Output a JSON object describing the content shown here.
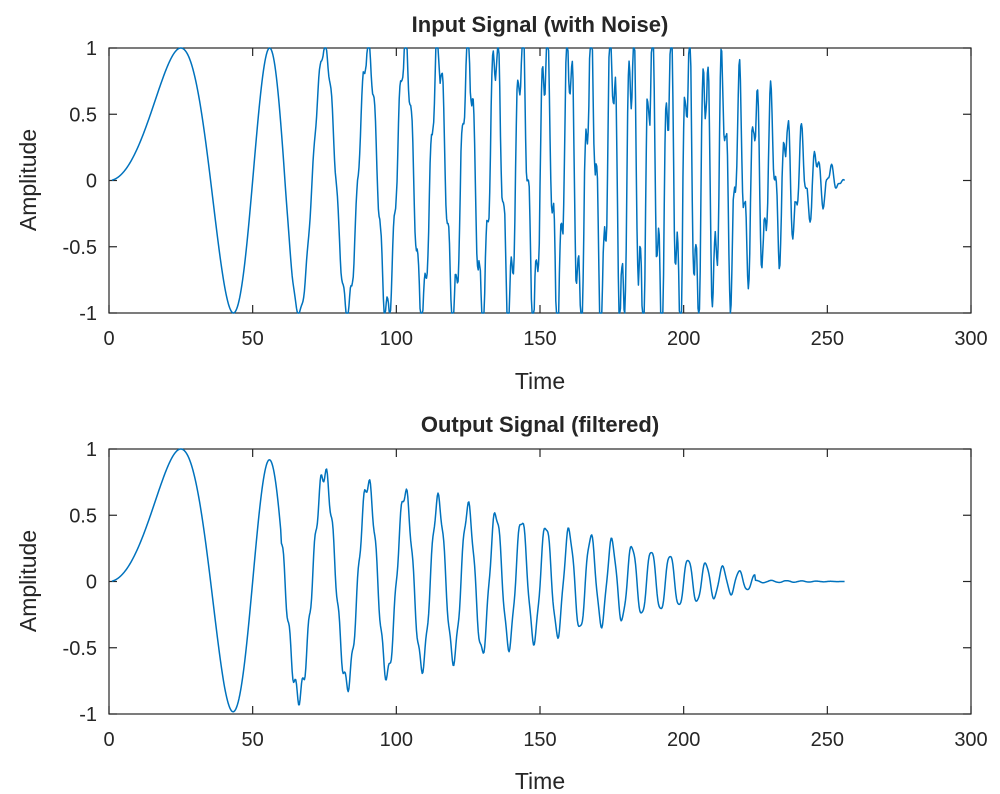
{
  "chart_data": [
    {
      "type": "line",
      "title": "Input Signal (with Noise)",
      "xlabel": "Time",
      "ylabel": "Amplitude",
      "xlim": [
        0,
        300
      ],
      "ylim": [
        -1,
        1
      ],
      "x_ticks": [
        0,
        50,
        100,
        150,
        200,
        250,
        300
      ],
      "x_tick_labels": [
        "0",
        "50",
        "100",
        "150",
        "200",
        "250",
        "300"
      ],
      "y_ticks": [
        1,
        0.5,
        0,
        -0.5,
        -1
      ],
      "y_tick_labels": [
        "1",
        "0.5",
        "0",
        "-0.5",
        "-1"
      ],
      "grid": false,
      "series": [
        {
          "color": "#0072BD",
          "x_range": [
            1,
            256
          ],
          "num_points": 256,
          "signal": "linear chirp sin(pi*0.0008*n^2) plus high-frequency noise burst (~0.4 amplitude) growing toward the end",
          "envelope": "amplitude 1 until ~n=200, tapering to 0 at n=256"
        }
      ]
    },
    {
      "type": "line",
      "title": "Output Signal (filtered)",
      "xlabel": "Time",
      "ylabel": "Amplitude",
      "xlim": [
        0,
        300
      ],
      "ylim": [
        -1,
        1
      ],
      "x_ticks": [
        0,
        50,
        100,
        150,
        200,
        250,
        300
      ],
      "x_tick_labels": [
        "0",
        "50",
        "100",
        "150",
        "200",
        "250",
        "300"
      ],
      "y_ticks": [
        1,
        0.5,
        0,
        -0.5,
        -1
      ],
      "y_tick_labels": [
        "1",
        "0.5",
        "0",
        "-0.5",
        "-1"
      ],
      "grid": false,
      "series": [
        {
          "color": "#0072BD",
          "x_range": [
            1,
            256
          ],
          "num_points": 256,
          "signal": "linear chirp sin(pi*0.0008*n^2) after low-pass filtering",
          "envelope": "amplitude 1 at start decaying to ~0 near n=225"
        }
      ]
    }
  ]
}
